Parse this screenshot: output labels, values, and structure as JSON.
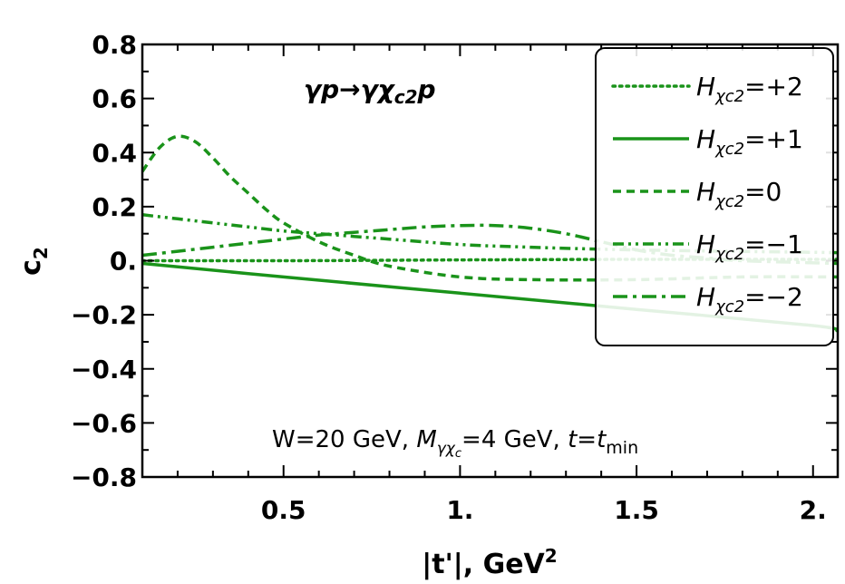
{
  "chart_data": {
    "type": "line",
    "annotation": {
      "process_parts": [
        "γp→γχ",
        "c2",
        "p"
      ],
      "conditions_parts": [
        "W=20 GeV, ",
        "M",
        "γχ",
        "c",
        "=4 GeV, ",
        "t",
        "=",
        "t",
        "min"
      ]
    },
    "xlabel": {
      "main": "|t'|, GeV",
      "sup": "2"
    },
    "ylabel": {
      "main": "c",
      "sub": "2"
    },
    "xlim": [
      0.1,
      2.07
    ],
    "ylim": [
      -0.8,
      0.8
    ],
    "x_tick_labels": [
      {
        "value": 0.5,
        "label": "0.5"
      },
      {
        "value": 1.0,
        "label": "1."
      },
      {
        "value": 1.5,
        "label": "1.5"
      },
      {
        "value": 2.0,
        "label": "2."
      }
    ],
    "y_tick_labels": [
      {
        "value": 0.8,
        "label": "0.8"
      },
      {
        "value": 0.6,
        "label": "0.6"
      },
      {
        "value": 0.4,
        "label": "0.4"
      },
      {
        "value": 0.2,
        "label": "0.2"
      },
      {
        "value": 0.0,
        "label": "0."
      },
      {
        "value": -0.2,
        "label": "−0.2"
      },
      {
        "value": -0.4,
        "label": "−0.4"
      },
      {
        "value": -0.6,
        "label": "−0.6"
      },
      {
        "value": -0.8,
        "label": "−0.8"
      }
    ],
    "legend": "top-right",
    "line_color": "#1a931a",
    "series": [
      {
        "name_parts": [
          "H",
          "χc2",
          "=+2"
        ],
        "style": "dotted",
        "x": [
          0.1,
          0.5,
          1.0,
          1.5,
          2.07
        ],
        "y": [
          0.0,
          0.0,
          0.003,
          0.005,
          0.005
        ]
      },
      {
        "name_parts": [
          "H",
          "χc2",
          "=+1"
        ],
        "style": "solid",
        "x": [
          0.1,
          0.5,
          1.0,
          1.5,
          2.0,
          2.07
        ],
        "y": [
          -0.01,
          -0.06,
          -0.12,
          -0.18,
          -0.24,
          -0.26
        ]
      },
      {
        "name_parts": [
          "H",
          "χc2",
          "=0"
        ],
        "style": "dashed",
        "x": [
          0.1,
          0.15,
          0.2,
          0.25,
          0.3,
          0.35,
          0.4,
          0.45,
          0.5,
          0.6,
          0.7,
          0.8,
          1.0,
          1.2,
          1.5,
          1.8,
          2.07
        ],
        "y": [
          0.33,
          0.42,
          0.46,
          0.44,
          0.38,
          0.31,
          0.25,
          0.19,
          0.14,
          0.07,
          0.02,
          -0.02,
          -0.06,
          -0.07,
          -0.07,
          -0.06,
          -0.06
        ]
      },
      {
        "name_parts": [
          "H",
          "χc2",
          "=−1"
        ],
        "style": "dashdotdot",
        "x": [
          0.1,
          0.2,
          0.3,
          0.4,
          0.5,
          0.6,
          0.7,
          0.8,
          1.0,
          1.2,
          1.5,
          2.07
        ],
        "y": [
          0.17,
          0.155,
          0.14,
          0.125,
          0.11,
          0.1,
          0.09,
          0.08,
          0.06,
          0.05,
          0.04,
          0.03
        ]
      },
      {
        "name_parts": [
          "H",
          "χc2",
          "=−2"
        ],
        "style": "dashdot",
        "x": [
          0.1,
          0.2,
          0.3,
          0.4,
          0.5,
          0.6,
          0.7,
          0.8,
          0.9,
          1.0,
          1.1,
          1.2,
          1.3,
          1.4,
          1.5,
          1.6,
          1.7,
          1.8,
          2.07
        ],
        "y": [
          0.02,
          0.035,
          0.05,
          0.065,
          0.08,
          0.095,
          0.105,
          0.115,
          0.125,
          0.13,
          0.13,
          0.12,
          0.1,
          0.07,
          0.04,
          0.02,
          0.01,
          0.0,
          -0.01
        ]
      }
    ]
  }
}
